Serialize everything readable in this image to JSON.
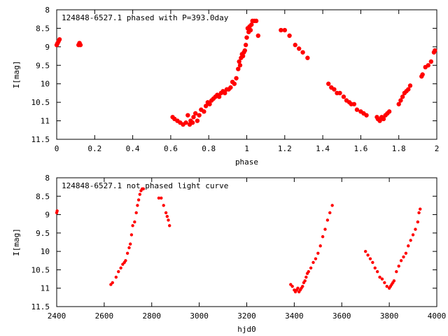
{
  "chart_data": [
    {
      "type": "scatter",
      "title": "124848-6527.1 phased with P=393.0day",
      "xlabel": "phase",
      "ylabel": "I[mag]",
      "xlim": [
        0,
        2
      ],
      "ylim": [
        8,
        11.5
      ],
      "y_inverted": true,
      "grid": false,
      "xticks": [
        0,
        0.2,
        0.4,
        0.6,
        0.8,
        1,
        1.2,
        1.4,
        1.6,
        1.8,
        2
      ],
      "xtick_labels": [
        "0",
        "0.2",
        "0.4",
        "0.6",
        "0.8",
        "1",
        "1.2",
        "1.4",
        "1.6",
        "1.8",
        "2"
      ],
      "yticks": [
        8,
        8.5,
        9,
        9.5,
        10,
        10.5,
        11,
        11.5
      ],
      "ytick_labels": [
        "8",
        "8.5",
        "9",
        "9.5",
        "10",
        "10.5",
        "11",
        "11.5"
      ],
      "marker_color": "#ff0000",
      "series": [
        {
          "x": [
            0.0,
            0.005,
            0.01,
            0.015,
            0.115,
            0.12,
            0.125,
            0.61,
            0.62,
            0.635,
            0.65,
            0.665,
            0.68,
            0.69,
            0.7,
            0.705,
            0.715,
            0.72,
            0.73,
            0.74,
            0.75,
            0.76,
            0.775,
            0.785,
            0.795,
            0.805,
            0.815,
            0.825,
            0.835,
            0.845,
            0.855,
            0.865,
            0.875,
            0.885,
            0.895,
            0.905,
            0.915,
            0.925,
            0.935,
            0.945,
            0.955,
            0.96,
            0.965,
            0.97,
            0.975,
            0.98,
            0.985,
            0.99,
            0.995,
            1.0,
            1.005,
            1.01,
            1.015,
            1.02,
            1.025,
            1.03,
            1.04,
            1.05,
            1.06,
            1.18,
            1.2,
            1.225,
            1.255,
            1.275,
            1.295,
            1.32,
            1.43,
            1.445,
            1.46,
            1.475,
            1.49,
            1.51,
            1.525,
            1.54,
            1.55,
            1.565,
            1.58,
            1.6,
            1.615,
            1.63,
            1.685,
            1.69,
            1.7,
            1.71,
            1.72,
            1.73,
            1.74,
            1.75,
            1.8,
            1.81,
            1.82,
            1.83,
            1.84,
            1.85,
            1.86,
            1.92,
            1.925,
            1.94,
            1.955,
            1.97,
            1.985,
            1.99
          ],
          "y": [
            8.95,
            8.9,
            8.85,
            8.8,
            8.95,
            8.9,
            8.95,
            10.9,
            10.95,
            11.0,
            11.05,
            11.1,
            11.05,
            10.85,
            11.1,
            11.0,
            11.05,
            10.9,
            10.8,
            11.0,
            10.85,
            10.7,
            10.75,
            10.6,
            10.5,
            10.55,
            10.45,
            10.4,
            10.35,
            10.3,
            10.35,
            10.25,
            10.2,
            10.25,
            10.15,
            10.15,
            10.1,
            9.95,
            10.0,
            9.85,
            9.6,
            9.4,
            9.5,
            9.3,
            9.2,
            9.25,
            9.15,
            9.1,
            8.95,
            8.75,
            8.5,
            8.6,
            8.45,
            8.55,
            8.4,
            8.3,
            8.3,
            8.3,
            8.7,
            8.55,
            8.55,
            8.7,
            8.95,
            9.05,
            9.15,
            9.3,
            10.0,
            10.1,
            10.15,
            10.25,
            10.25,
            10.35,
            10.45,
            10.5,
            10.55,
            10.55,
            10.7,
            10.75,
            10.8,
            10.85,
            10.9,
            10.95,
            11.0,
            10.9,
            10.95,
            10.85,
            10.8,
            10.75,
            10.55,
            10.45,
            10.35,
            10.25,
            10.2,
            10.15,
            10.05,
            9.8,
            9.75,
            9.55,
            9.5,
            9.4,
            9.15,
            9.1
          ]
        }
      ]
    },
    {
      "type": "scatter",
      "title": "124848-6527.1 not phased light curve",
      "xlabel": "hjd0",
      "ylabel": "I[mag]",
      "xlim": [
        2400,
        4000
      ],
      "ylim": [
        8,
        11.5
      ],
      "y_inverted": true,
      "grid": false,
      "xticks": [
        2400,
        2600,
        2800,
        3000,
        3200,
        3400,
        3600,
        3800,
        4000
      ],
      "xtick_labels": [
        "2400",
        "2600",
        "2800",
        "3000",
        "3200",
        "3400",
        "3600",
        "3800",
        "4000"
      ],
      "yticks": [
        8,
        8.5,
        9,
        9.5,
        10,
        10.5,
        11,
        11.5
      ],
      "ytick_labels": [
        "8",
        "8.5",
        "9",
        "9.5",
        "10",
        "10.5",
        "11",
        "11.5"
      ],
      "marker_color": "#ff0000",
      "series": [
        {
          "x": [
            2400,
            2402,
            2628,
            2635,
            2650,
            2660,
            2670,
            2678,
            2685,
            2690,
            2698,
            2705,
            2710,
            2715,
            2720,
            2728,
            2735,
            2740,
            2745,
            2750,
            2755,
            2760,
            2765,
            2830,
            2840,
            2850,
            2860,
            2865,
            2870,
            2875,
            3385,
            3392,
            3400,
            3405,
            3410,
            3415,
            3420,
            3425,
            3430,
            3435,
            3440,
            3445,
            3450,
            3455,
            3460,
            3470,
            3480,
            3490,
            3500,
            3510,
            3520,
            3530,
            3540,
            3550,
            3560,
            3700,
            3710,
            3720,
            3730,
            3740,
            3750,
            3760,
            3770,
            3780,
            3790,
            3800,
            3805,
            3810,
            3815,
            3820,
            3830,
            3840,
            3850,
            3860,
            3870,
            3880,
            3890,
            3900,
            3910,
            3920,
            3925,
            3930
          ],
          "y": [
            8.95,
            8.9,
            10.9,
            10.85,
            10.7,
            10.55,
            10.45,
            10.35,
            10.3,
            10.25,
            10.05,
            9.9,
            9.8,
            9.55,
            9.3,
            9.2,
            8.95,
            8.75,
            8.6,
            8.45,
            8.35,
            8.3,
            8.3,
            8.55,
            8.55,
            8.75,
            8.95,
            9.05,
            9.15,
            9.3,
            10.9,
            10.95,
            11.05,
            11.1,
            11.05,
            11.0,
            11.1,
            11.05,
            11.0,
            10.95,
            10.85,
            10.8,
            10.7,
            10.6,
            10.55,
            10.45,
            10.3,
            10.2,
            10.05,
            9.85,
            9.6,
            9.4,
            9.15,
            8.95,
            8.75,
            10.0,
            10.1,
            10.2,
            10.3,
            10.45,
            10.55,
            10.7,
            10.75,
            10.85,
            10.95,
            11.0,
            10.95,
            10.9,
            10.85,
            10.8,
            10.55,
            10.4,
            10.25,
            10.15,
            10.05,
            9.85,
            9.7,
            9.55,
            9.4,
            9.2,
            8.95,
            8.85
          ]
        }
      ]
    }
  ]
}
